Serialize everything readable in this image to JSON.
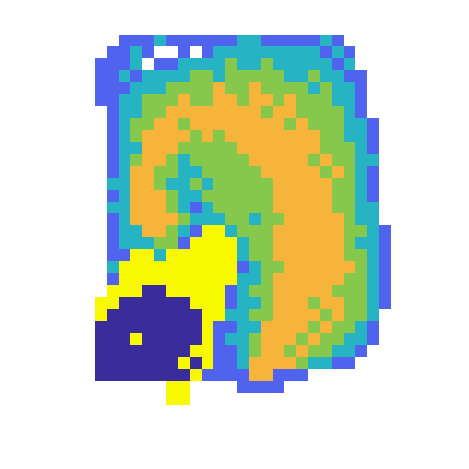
{
  "chart_data": {
    "type": "heatmap",
    "colors": [
      "#3b2c9b",
      "#4f63ee",
      "#26b4c4",
      "#86c84b",
      "#f7b43a",
      "#f8f800"
    ],
    "cells": [
      [
        null,
        null,
        1,
        1,
        1,
        2,
        1,
        1,
        1,
        1,
        1,
        1,
        2,
        2,
        1,
        1,
        1,
        1,
        1,
        2,
        1,
        null,
        null,
        null,
        null
      ],
      [
        null,
        1,
        1,
        2,
        1,
        null,
        null,
        1,
        null,
        1,
        2,
        2,
        2,
        2,
        2,
        2,
        2,
        2,
        2,
        1,
        2,
        1,
        null,
        null,
        null
      ],
      [
        1,
        1,
        1,
        2,
        null,
        1,
        1,
        2,
        2,
        2,
        2,
        3,
        2,
        2,
        3,
        2,
        2,
        2,
        2,
        2,
        1,
        2,
        null,
        null,
        null
      ],
      [
        1,
        1,
        2,
        1,
        2,
        2,
        2,
        2,
        3,
        3,
        2,
        3,
        3,
        3,
        3,
        3,
        2,
        2,
        3,
        2,
        2,
        1,
        1,
        null,
        null
      ],
      [
        1,
        1,
        1,
        2,
        2,
        2,
        3,
        3,
        3,
        3,
        4,
        3,
        3,
        4,
        3,
        3,
        3,
        3,
        2,
        3,
        2,
        2,
        1,
        null,
        null
      ],
      [
        1,
        1,
        2,
        2,
        3,
        3,
        3,
        4,
        3,
        3,
        4,
        4,
        3,
        4,
        4,
        3,
        4,
        3,
        3,
        3,
        2,
        2,
        1,
        null,
        null
      ],
      [
        null,
        1,
        2,
        2,
        3,
        3,
        4,
        4,
        4,
        4,
        4,
        4,
        4,
        4,
        3,
        4,
        4,
        3,
        3,
        3,
        3,
        2,
        1,
        null,
        null
      ],
      [
        null,
        1,
        2,
        3,
        3,
        4,
        4,
        3,
        4,
        4,
        4,
        4,
        4,
        4,
        4,
        4,
        3,
        4,
        3,
        3,
        3,
        2,
        2,
        1,
        null
      ],
      [
        null,
        1,
        2,
        3,
        4,
        4,
        4,
        4,
        3,
        4,
        3,
        4,
        4,
        4,
        4,
        4,
        4,
        4,
        4,
        3,
        3,
        2,
        2,
        1,
        null
      ],
      [
        null,
        1,
        2,
        2,
        4,
        4,
        4,
        3,
        3,
        3,
        3,
        3,
        4,
        4,
        4,
        4,
        4,
        4,
        4,
        3,
        3,
        3,
        2,
        1,
        null
      ],
      [
        null,
        1,
        2,
        3,
        4,
        4,
        3,
        2,
        3,
        3,
        3,
        3,
        3,
        4,
        4,
        4,
        4,
        4,
        3,
        4,
        3,
        3,
        2,
        2,
        null
      ],
      [
        null,
        1,
        2,
        4,
        4,
        3,
        3,
        2,
        2,
        3,
        3,
        3,
        3,
        3,
        4,
        4,
        4,
        4,
        4,
        3,
        4,
        3,
        2,
        1,
        null
      ],
      [
        null,
        2,
        2,
        4,
        4,
        3,
        2,
        2,
        3,
        2,
        3,
        3,
        3,
        3,
        3,
        4,
        4,
        4,
        4,
        4,
        3,
        3,
        2,
        1,
        null
      ],
      [
        null,
        1,
        2,
        4,
        4,
        4,
        3,
        2,
        2,
        3,
        3,
        3,
        3,
        3,
        3,
        4,
        4,
        4,
        4,
        4,
        3,
        3,
        2,
        1,
        null
      ],
      [
        null,
        2,
        2,
        4,
        4,
        4,
        3,
        2,
        1,
        2,
        3,
        3,
        3,
        3,
        3,
        4,
        4,
        4,
        4,
        4,
        3,
        3,
        2,
        2,
        null
      ],
      [
        null,
        1,
        2,
        4,
        4,
        4,
        4,
        3,
        2,
        2,
        2,
        3,
        3,
        2,
        3,
        3,
        4,
        4,
        4,
        4,
        4,
        3,
        2,
        2,
        null
      ],
      [
        null,
        1,
        2,
        2,
        4,
        4,
        3,
        2,
        1,
        5,
        5,
        2,
        3,
        3,
        3,
        4,
        4,
        4,
        4,
        4,
        4,
        3,
        3,
        2,
        1
      ],
      [
        null,
        1,
        2,
        2,
        2,
        3,
        3,
        1,
        5,
        5,
        5,
        5,
        2,
        3,
        3,
        4,
        4,
        4,
        4,
        4,
        4,
        3,
        2,
        2,
        1
      ],
      [
        null,
        1,
        1,
        5,
        5,
        2,
        5,
        5,
        5,
        5,
        5,
        5,
        2,
        3,
        3,
        4,
        4,
        4,
        4,
        4,
        4,
        3,
        3,
        2,
        1
      ],
      [
        null,
        2,
        5,
        5,
        5,
        5,
        5,
        5,
        5,
        5,
        5,
        5,
        1,
        2,
        3,
        3,
        4,
        4,
        4,
        4,
        4,
        4,
        3,
        2,
        1
      ],
      [
        null,
        1,
        5,
        5,
        5,
        5,
        5,
        5,
        5,
        5,
        5,
        5,
        2,
        2,
        3,
        4,
        4,
        4,
        4,
        4,
        4,
        3,
        3,
        2,
        1
      ],
      [
        null,
        5,
        5,
        5,
        0,
        0,
        5,
        5,
        5,
        5,
        5,
        1,
        2,
        3,
        3,
        4,
        4,
        4,
        4,
        4,
        3,
        3,
        3,
        2,
        1
      ],
      [
        5,
        5,
        0,
        0,
        0,
        0,
        0,
        0,
        5,
        5,
        5,
        1,
        2,
        2,
        3,
        4,
        4,
        4,
        3,
        4,
        4,
        3,
        3,
        2,
        1
      ],
      [
        5,
        0,
        0,
        0,
        0,
        0,
        0,
        0,
        0,
        5,
        5,
        2,
        2,
        3,
        3,
        4,
        4,
        4,
        4,
        3,
        4,
        3,
        3,
        2,
        null
      ],
      [
        0,
        0,
        0,
        0,
        0,
        0,
        0,
        0,
        0,
        5,
        1,
        1,
        2,
        2,
        4,
        4,
        4,
        4,
        3,
        4,
        3,
        3,
        2,
        1,
        null
      ],
      [
        0,
        0,
        0,
        5,
        0,
        0,
        0,
        0,
        0,
        5,
        1,
        2,
        2,
        3,
        4,
        4,
        4,
        3,
        4,
        3,
        3,
        2,
        2,
        1,
        null
      ],
      [
        0,
        0,
        0,
        0,
        0,
        0,
        0,
        0,
        5,
        5,
        1,
        1,
        2,
        3,
        4,
        4,
        3,
        4,
        3,
        3,
        2,
        2,
        1,
        null,
        null
      ],
      [
        0,
        0,
        0,
        0,
        0,
        0,
        0,
        5,
        0,
        5,
        1,
        1,
        2,
        4,
        4,
        4,
        4,
        3,
        2,
        2,
        1,
        1,
        null,
        null,
        null
      ],
      [
        0,
        0,
        0,
        0,
        0,
        0,
        0,
        0,
        5,
        1,
        1,
        1,
        1,
        4,
        4,
        1,
        1,
        1,
        null,
        null,
        null,
        null,
        null,
        null,
        null
      ],
      [
        null,
        null,
        null,
        null,
        null,
        null,
        5,
        5,
        null,
        null,
        null,
        null,
        1,
        1,
        1,
        1,
        null,
        null,
        null,
        null,
        null,
        null,
        null,
        null,
        null
      ],
      [
        null,
        null,
        null,
        null,
        null,
        null,
        5,
        5,
        null,
        null,
        null,
        null,
        null,
        null,
        null,
        null,
        null,
        null,
        null,
        null,
        null,
        null,
        null,
        null,
        null
      ]
    ]
  }
}
